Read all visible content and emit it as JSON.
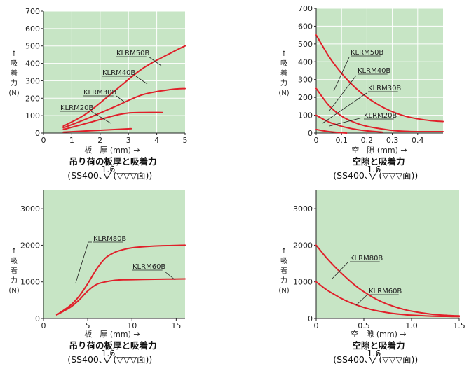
{
  "curve_color": "#e0202a",
  "plot_background": "#c7e5c5",
  "chart_data": [
    {
      "type": "line",
      "xlabel": "板　厚 (mm) →",
      "ylabel": [
        "↑",
        "吸",
        "着",
        "力",
        "(N)"
      ],
      "caption": [
        "吊り荷の板厚と吸着力",
        "(SS400、",
        "1.6",
        "(▽▽▽面))"
      ],
      "xlim": [
        0,
        5
      ],
      "ylim": [
        0,
        700
      ],
      "xticks": [
        0,
        1,
        2,
        3,
        4,
        5
      ],
      "yticks": [
        0,
        100,
        200,
        300,
        400,
        500,
        600,
        700
      ],
      "grid": true,
      "series": [
        {
          "name": "KLRM50B",
          "x": [
            0.7,
            1.5,
            2.5,
            3.5,
            4.5,
            5.0
          ],
          "y": [
            40,
            110,
            240,
            370,
            460,
            500
          ]
        },
        {
          "name": "KLRM40B",
          "x": [
            0.7,
            1.5,
            2.5,
            3.5,
            4.5,
            5.0
          ],
          "y": [
            30,
            80,
            150,
            220,
            250,
            255
          ]
        },
        {
          "name": "KLRM30B",
          "x": [
            0.7,
            1.5,
            2.5,
            3.0,
            3.5,
            4.2
          ],
          "y": [
            20,
            55,
            100,
            115,
            118,
            118
          ]
        },
        {
          "name": "KLRM20B",
          "x": [
            0.7,
            1.5,
            2.5,
            3.1
          ],
          "y": [
            5,
            12,
            20,
            25
          ]
        }
      ]
    },
    {
      "type": "line",
      "xlabel": "空　隙 (mm) →",
      "ylabel": [
        "↑",
        "吸",
        "着",
        "力",
        "(N)"
      ],
      "caption": [
        "空隙と吸着力",
        "(SS400、",
        "1.6",
        "(▽▽▽面))"
      ],
      "xlim": [
        0,
        0.5
      ],
      "ylim": [
        0,
        700
      ],
      "xticks": [
        0,
        0.1,
        0.2,
        0.3,
        0.4
      ],
      "yticks": [
        0,
        100,
        200,
        300,
        400,
        500,
        600,
        700
      ],
      "grid": true,
      "series": [
        {
          "name": "KLRM50B",
          "x": [
            0,
            0.05,
            0.1,
            0.15,
            0.2,
            0.25,
            0.3,
            0.35,
            0.4,
            0.45,
            0.5
          ],
          "y": [
            550,
            430,
            335,
            260,
            200,
            155,
            120,
            95,
            80,
            70,
            65
          ]
        },
        {
          "name": "KLRM40B",
          "x": [
            0,
            0.05,
            0.1,
            0.15,
            0.2,
            0.25,
            0.3,
            0.35,
            0.4,
            0.5
          ],
          "y": [
            250,
            155,
            95,
            60,
            38,
            25,
            15,
            10,
            8,
            8
          ]
        },
        {
          "name": "KLRM30B",
          "x": [
            0,
            0.05,
            0.1,
            0.15,
            0.2,
            0.26
          ],
          "y": [
            100,
            62,
            38,
            22,
            12,
            5
          ]
        },
        {
          "name": "KLRM20B",
          "x": [
            0,
            0.05,
            0.1,
            0.12
          ],
          "y": [
            20,
            8,
            2,
            0
          ]
        }
      ]
    },
    {
      "type": "line",
      "xlabel": "板　厚 (mm) →",
      "ylabel": [
        "↑",
        "吸",
        "着",
        "力",
        "(N)"
      ],
      "caption": [
        "吊り荷の板厚と吸着力",
        "(SS400、",
        "1.6",
        "(▽▽▽面))"
      ],
      "xlim": [
        0,
        16
      ],
      "ylim": [
        0,
        3500
      ],
      "xticks": [
        0,
        5,
        10,
        15
      ],
      "yticks": [
        0,
        1000,
        2000,
        3000
      ],
      "grid": false,
      "series": [
        {
          "name": "KLRM80B",
          "x": [
            1.5,
            3,
            4,
            5,
            6,
            7,
            8,
            9,
            10,
            12,
            14,
            16
          ],
          "y": [
            100,
            350,
            600,
            950,
            1350,
            1650,
            1800,
            1880,
            1930,
            1970,
            1990,
            2000
          ]
        },
        {
          "name": "KLRM60B",
          "x": [
            1.5,
            3,
            4,
            5,
            6,
            7,
            8,
            9,
            10,
            12,
            14,
            16
          ],
          "y": [
            100,
            300,
            500,
            750,
            930,
            1000,
            1040,
            1055,
            1060,
            1070,
            1075,
            1080
          ]
        }
      ]
    },
    {
      "type": "line",
      "xlabel": "空　隙 (mm) →",
      "ylabel": [
        "↑",
        "吸",
        "着",
        "力",
        "(N)"
      ],
      "caption": [
        "空隙と吸着力",
        "(SS400、",
        "1.6",
        "(▽▽▽面))"
      ],
      "xlim": [
        0,
        1.5
      ],
      "ylim": [
        0,
        3500
      ],
      "xticks": [
        0,
        0.5,
        1.0,
        1.5
      ],
      "xticklabels": [
        "0",
        "0.5",
        "1.0",
        "1.5"
      ],
      "yticks": [
        0,
        1000,
        2000,
        3000
      ],
      "grid": false,
      "series": [
        {
          "name": "KLRM80B",
          "x": [
            0,
            0.1,
            0.2,
            0.3,
            0.4,
            0.5,
            0.6,
            0.7,
            0.8,
            0.9,
            1.0,
            1.2,
            1.4,
            1.5
          ],
          "y": [
            2000,
            1680,
            1400,
            1150,
            920,
            730,
            570,
            440,
            340,
            260,
            200,
            120,
            80,
            70
          ]
        },
        {
          "name": "KLRM60B",
          "x": [
            0,
            0.1,
            0.2,
            0.3,
            0.4,
            0.5,
            0.6,
            0.7,
            0.8,
            0.9,
            1.0,
            1.2,
            1.4,
            1.5
          ],
          "y": [
            1000,
            800,
            640,
            500,
            390,
            300,
            230,
            180,
            140,
            110,
            90,
            65,
            55,
            50
          ]
        }
      ]
    }
  ]
}
